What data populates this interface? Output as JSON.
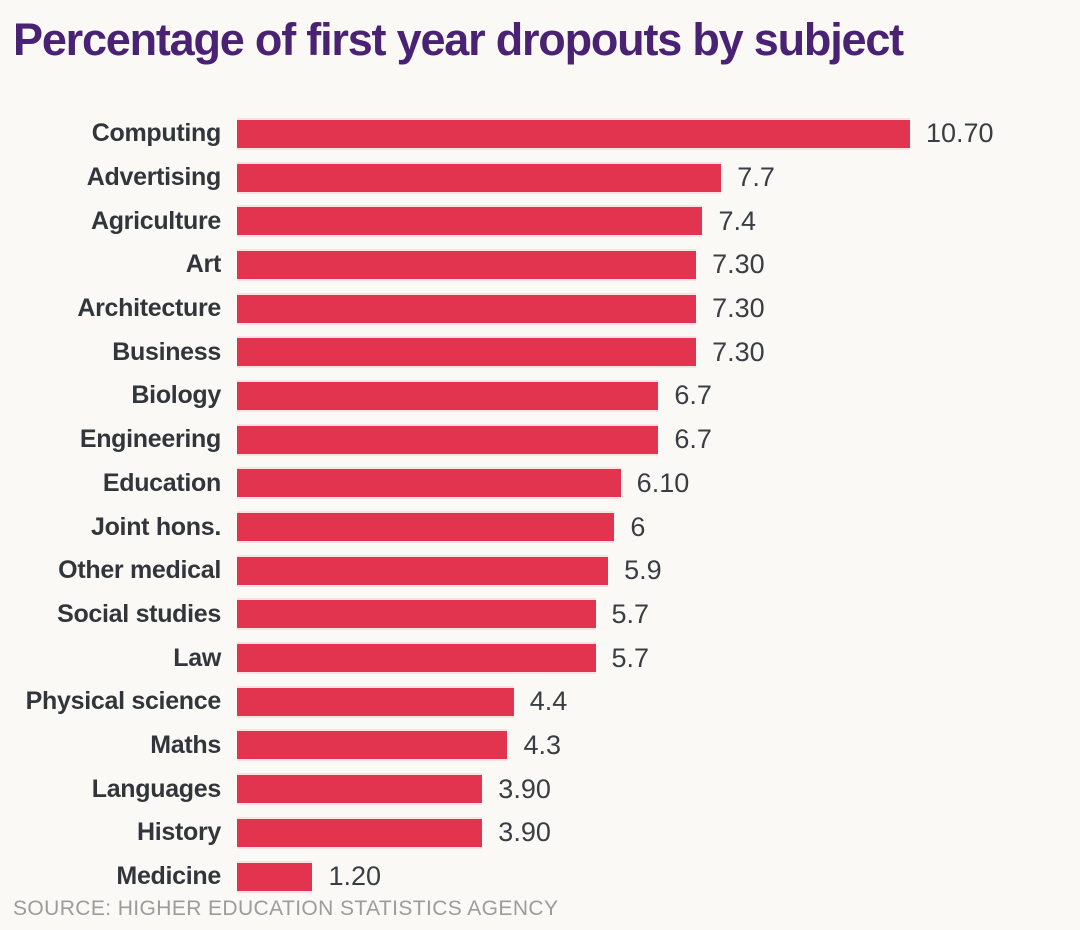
{
  "title": "Percentage of first year dropouts by subject",
  "source": "SOURCE: HIGHER EDUCATION STATISTICS AGENCY",
  "colors": {
    "background": "#FAF9F6",
    "title_purple": "#4A2274",
    "bar_red": "#E3344F",
    "label_dark": "#32363B",
    "value_dark": "#3A3E44",
    "source_gray": "#9C9C9C"
  },
  "chart_data": {
    "type": "bar",
    "orientation": "horizontal",
    "title": "Percentage of first year dropouts by subject",
    "xlabel": "",
    "ylabel": "",
    "xlim": [
      0,
      10.7
    ],
    "grid": false,
    "legend": false,
    "categories": [
      "Computing",
      "Advertising",
      "Agriculture",
      "Art",
      "Architecture",
      "Business",
      "Biology",
      "Engineering",
      "Education",
      "Joint hons.",
      "Other medical",
      "Social studies",
      "Law",
      "Physical science",
      "Maths",
      "Languages",
      "History",
      "Medicine"
    ],
    "values": [
      10.7,
      7.7,
      7.4,
      7.3,
      7.3,
      7.3,
      6.7,
      6.7,
      6.1,
      6,
      5.9,
      5.7,
      5.7,
      4.4,
      4.3,
      3.9,
      3.9,
      1.2
    ],
    "value_labels": [
      "10.70",
      "7.7",
      "7.4",
      "7.30",
      "7.30",
      "7.30",
      "6.7",
      "6.7",
      "6.10",
      "6",
      "5.9",
      "5.7",
      "5.7",
      "4.4",
      "4.3",
      "3.90",
      "3.90",
      "1.20"
    ]
  }
}
